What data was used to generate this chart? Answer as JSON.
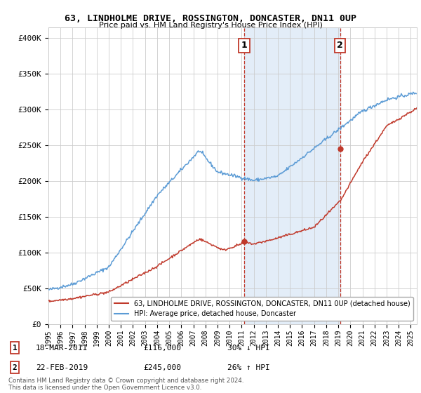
{
  "title": "63, LINDHOLME DRIVE, ROSSINGTON, DONCASTER, DN11 0UP",
  "subtitle": "Price paid vs. HM Land Registry's House Price Index (HPI)",
  "ylabel_ticks": [
    "£0",
    "£50K",
    "£100K",
    "£150K",
    "£200K",
    "£250K",
    "£300K",
    "£350K",
    "£400K"
  ],
  "ytick_values": [
    0,
    50000,
    100000,
    150000,
    200000,
    250000,
    300000,
    350000,
    400000
  ],
  "ylim": [
    0,
    415000
  ],
  "hpi_color": "#5b9bd5",
  "price_color": "#c0392b",
  "shaded_color": "#dce9f7",
  "grid_color": "#cccccc",
  "bg_color": "#ffffff",
  "legend_entry1": "63, LINDHOLME DRIVE, ROSSINGTON, DONCASTER, DN11 0UP (detached house)",
  "legend_entry2": "HPI: Average price, detached house, Doncaster",
  "annotation1_label": "1",
  "annotation1_date": "18-MAR-2011",
  "annotation1_price": "£116,000",
  "annotation1_hpi": "30% ↓ HPI",
  "annotation2_label": "2",
  "annotation2_date": "22-FEB-2019",
  "annotation2_price": "£245,000",
  "annotation2_hpi": "26% ↑ HPI",
  "footer": "Contains HM Land Registry data © Crown copyright and database right 2024.\nThis data is licensed under the Open Government Licence v3.0.",
  "sale1_x": 2011.21,
  "sale1_y": 116000,
  "sale2_x": 2019.14,
  "sale2_y": 245000,
  "xmin": 1995,
  "xmax": 2025.5
}
